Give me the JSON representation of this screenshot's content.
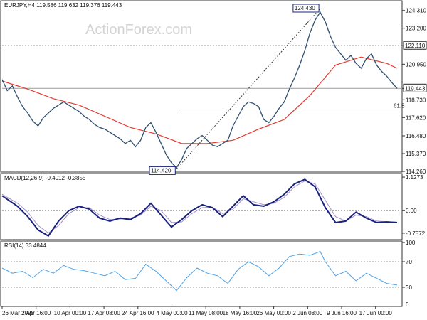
{
  "chart_data": {
    "type": "line",
    "watermark": "ActionForex.com",
    "x_labels": [
      "26 Mar 2020",
      "2 Apr 16:00",
      "10 Apr 00:00",
      "17 Apr 08:00",
      "24 Apr 16:00",
      "4 May 00:00",
      "11 May 08:00",
      "18 May 16:00",
      "26 May 00:00",
      "2 Jun 08:00",
      "9 Jun 16:00",
      "17 Jun 00:00"
    ],
    "price_panel": {
      "title": "EURJPY,H4  119.586 119.632 119.376 119.443",
      "y_ticks": [
        "124.310",
        "123.200",
        "122.110",
        "120.950",
        "119.443",
        "118.730",
        "117.620",
        "116.480",
        "115.370",
        "114.260"
      ],
      "ylim": [
        114.26,
        124.83
      ],
      "price_series": [
        [
          0,
          120.0
        ],
        [
          1,
          119.3
        ],
        [
          2,
          119.6
        ],
        [
          3,
          118.9
        ],
        [
          4,
          118.3
        ],
        [
          5,
          117.9
        ],
        [
          6,
          117.4
        ],
        [
          7,
          117.1
        ],
        [
          8,
          117.6
        ],
        [
          9,
          117.9
        ],
        [
          10,
          118.2
        ],
        [
          11,
          118.4
        ],
        [
          12,
          118.6
        ],
        [
          13,
          118.4
        ],
        [
          14,
          118.2
        ],
        [
          15,
          118.0
        ],
        [
          16,
          117.7
        ],
        [
          17,
          117.5
        ],
        [
          18,
          117.2
        ],
        [
          19,
          117.0
        ],
        [
          20,
          116.9
        ],
        [
          21,
          116.7
        ],
        [
          22,
          116.5
        ],
        [
          23,
          116.3
        ],
        [
          24,
          116.0
        ],
        [
          25,
          116.2
        ],
        [
          26,
          115.8
        ],
        [
          27,
          116.2
        ],
        [
          28,
          117.0
        ],
        [
          29,
          117.3
        ],
        [
          30,
          116.7
        ],
        [
          31,
          116.0
        ],
        [
          32,
          115.3
        ],
        [
          33,
          114.8
        ],
        [
          34,
          114.5
        ],
        [
          35,
          115.0
        ],
        [
          36,
          115.7
        ],
        [
          37,
          116.0
        ],
        [
          38,
          116.3
        ],
        [
          39,
          116.5
        ],
        [
          40,
          116.2
        ],
        [
          41,
          115.9
        ],
        [
          42,
          115.8
        ],
        [
          43,
          116.0
        ],
        [
          44,
          116.2
        ],
        [
          45,
          117.1
        ],
        [
          46,
          117.7
        ],
        [
          47,
          118.3
        ],
        [
          48,
          118.6
        ],
        [
          49,
          118.5
        ],
        [
          50,
          118.3
        ],
        [
          51,
          117.5
        ],
        [
          52,
          117.3
        ],
        [
          53,
          117.7
        ],
        [
          54,
          118.2
        ],
        [
          55,
          118.6
        ],
        [
          56,
          119.4
        ],
        [
          57,
          120.1
        ],
        [
          58,
          120.9
        ],
        [
          59,
          121.8
        ],
        [
          60,
          122.9
        ],
        [
          61,
          123.7
        ],
        [
          62,
          124.2
        ],
        [
          63,
          123.6
        ],
        [
          64,
          122.7
        ],
        [
          65,
          122.0
        ],
        [
          66,
          121.6
        ],
        [
          67,
          121.2
        ],
        [
          68,
          121.5
        ],
        [
          69,
          121.0
        ],
        [
          70,
          120.7
        ],
        [
          71,
          121.3
        ],
        [
          72,
          121.6
        ],
        [
          73,
          120.9
        ],
        [
          74,
          120.5
        ],
        [
          75,
          120.2
        ],
        [
          76,
          119.8
        ],
        [
          77,
          119.443
        ]
      ],
      "ma_series": [
        [
          0,
          119.9
        ],
        [
          5,
          119.4
        ],
        [
          10,
          118.8
        ],
        [
          15,
          118.4
        ],
        [
          20,
          117.7
        ],
        [
          25,
          117.0
        ],
        [
          30,
          116.6
        ],
        [
          35,
          116.0
        ],
        [
          40,
          116.0
        ],
        [
          45,
          116.2
        ],
        [
          50,
          116.9
        ],
        [
          55,
          117.5
        ],
        [
          60,
          119.0
        ],
        [
          65,
          120.9
        ],
        [
          70,
          121.4
        ],
        [
          75,
          121.0
        ],
        [
          77,
          120.7
        ]
      ],
      "trendline": [
        [
          34,
          114.42
        ],
        [
          62,
          124.43
        ]
      ],
      "levels": {
        "dashed": 122.11,
        "current": 119.443,
        "fib": 118.1
      },
      "fib_label": "61.8",
      "swing_high_label": "124.430",
      "swing_low_label": "114.420",
      "dashed_label": "122.110",
      "current_label": "119.443"
    },
    "macd_panel": {
      "title": "MACD(12,26,9) -0.4012 -0.3855",
      "y_ticks": [
        "1.1273",
        "0.00",
        "-0.7572"
      ],
      "ylim": [
        -0.95,
        1.2
      ],
      "main_series": [
        [
          0,
          0.5
        ],
        [
          3,
          0.15
        ],
        [
          5,
          -0.2
        ],
        [
          7,
          -0.65
        ],
        [
          9,
          -0.85
        ],
        [
          11,
          -0.35
        ],
        [
          13,
          0.0
        ],
        [
          15,
          0.15
        ],
        [
          17,
          0.05
        ],
        [
          19,
          -0.25
        ],
        [
          21,
          -0.35
        ],
        [
          23,
          -0.25
        ],
        [
          25,
          -0.3
        ],
        [
          27,
          -0.1
        ],
        [
          29,
          0.25
        ],
        [
          31,
          -0.15
        ],
        [
          33,
          -0.55
        ],
        [
          35,
          -0.3
        ],
        [
          37,
          0.0
        ],
        [
          39,
          0.2
        ],
        [
          41,
          0.1
        ],
        [
          43,
          -0.2
        ],
        [
          45,
          0.15
        ],
        [
          47,
          0.5
        ],
        [
          49,
          0.2
        ],
        [
          51,
          0.15
        ],
        [
          53,
          0.3
        ],
        [
          55,
          0.55
        ],
        [
          57,
          0.9
        ],
        [
          59,
          1.05
        ],
        [
          61,
          0.8
        ],
        [
          63,
          0.1
        ],
        [
          65,
          -0.4
        ],
        [
          67,
          -0.35
        ],
        [
          69,
          -0.05
        ],
        [
          71,
          -0.25
        ],
        [
          73,
          -0.4
        ],
        [
          75,
          -0.38
        ],
        [
          77,
          -0.4012
        ]
      ],
      "signal_series": [
        [
          0,
          0.55
        ],
        [
          3,
          0.25
        ],
        [
          5,
          -0.05
        ],
        [
          7,
          -0.5
        ],
        [
          9,
          -0.75
        ],
        [
          11,
          -0.5
        ],
        [
          13,
          -0.1
        ],
        [
          15,
          0.1
        ],
        [
          17,
          0.1
        ],
        [
          19,
          -0.15
        ],
        [
          21,
          -0.3
        ],
        [
          23,
          -0.28
        ],
        [
          25,
          -0.25
        ],
        [
          27,
          -0.15
        ],
        [
          29,
          0.15
        ],
        [
          31,
          0.0
        ],
        [
          33,
          -0.4
        ],
        [
          35,
          -0.38
        ],
        [
          37,
          -0.1
        ],
        [
          39,
          0.1
        ],
        [
          41,
          0.12
        ],
        [
          43,
          -0.1
        ],
        [
          45,
          0.05
        ],
        [
          47,
          0.4
        ],
        [
          49,
          0.3
        ],
        [
          51,
          0.2
        ],
        [
          53,
          0.25
        ],
        [
          55,
          0.45
        ],
        [
          57,
          0.8
        ],
        [
          59,
          1.0
        ],
        [
          61,
          0.9
        ],
        [
          63,
          0.35
        ],
        [
          65,
          -0.2
        ],
        [
          67,
          -0.35
        ],
        [
          69,
          -0.15
        ],
        [
          71,
          -0.2
        ],
        [
          73,
          -0.35
        ],
        [
          75,
          -0.37
        ],
        [
          77,
          -0.3855
        ]
      ]
    },
    "rsi_panel": {
      "title": "RSI(14) 33.4844",
      "y_ticks": [
        "100",
        "70",
        "30",
        "0"
      ],
      "ylim": [
        0,
        100
      ],
      "levels": [
        70,
        30
      ],
      "series": [
        [
          0,
          60
        ],
        [
          2,
          52
        ],
        [
          4,
          55
        ],
        [
          6,
          45
        ],
        [
          8,
          58
        ],
        [
          10,
          52
        ],
        [
          12,
          64
        ],
        [
          14,
          58
        ],
        [
          16,
          56
        ],
        [
          18,
          52
        ],
        [
          20,
          48
        ],
        [
          22,
          55
        ],
        [
          24,
          42
        ],
        [
          26,
          44
        ],
        [
          28,
          66
        ],
        [
          30,
          55
        ],
        [
          32,
          40
        ],
        [
          34,
          25
        ],
        [
          36,
          45
        ],
        [
          38,
          60
        ],
        [
          40,
          52
        ],
        [
          42,
          48
        ],
        [
          44,
          36
        ],
        [
          46,
          58
        ],
        [
          48,
          70
        ],
        [
          50,
          62
        ],
        [
          52,
          48
        ],
        [
          54,
          60
        ],
        [
          56,
          78
        ],
        [
          58,
          82
        ],
        [
          60,
          80
        ],
        [
          62,
          86
        ],
        [
          63,
          70
        ],
        [
          65,
          48
        ],
        [
          67,
          55
        ],
        [
          69,
          40
        ],
        [
          71,
          52
        ],
        [
          73,
          44
        ],
        [
          75,
          36
        ],
        [
          77,
          33.48
        ]
      ]
    },
    "colors": {
      "price": "#2f4f6f",
      "ma": "#e23a2f",
      "macd_main": "#1a237e",
      "macd_signal": "#a38fc8",
      "rsi": "#4da3e8",
      "grid": "#9a9a9a",
      "label_border": "#1a237e"
    }
  }
}
